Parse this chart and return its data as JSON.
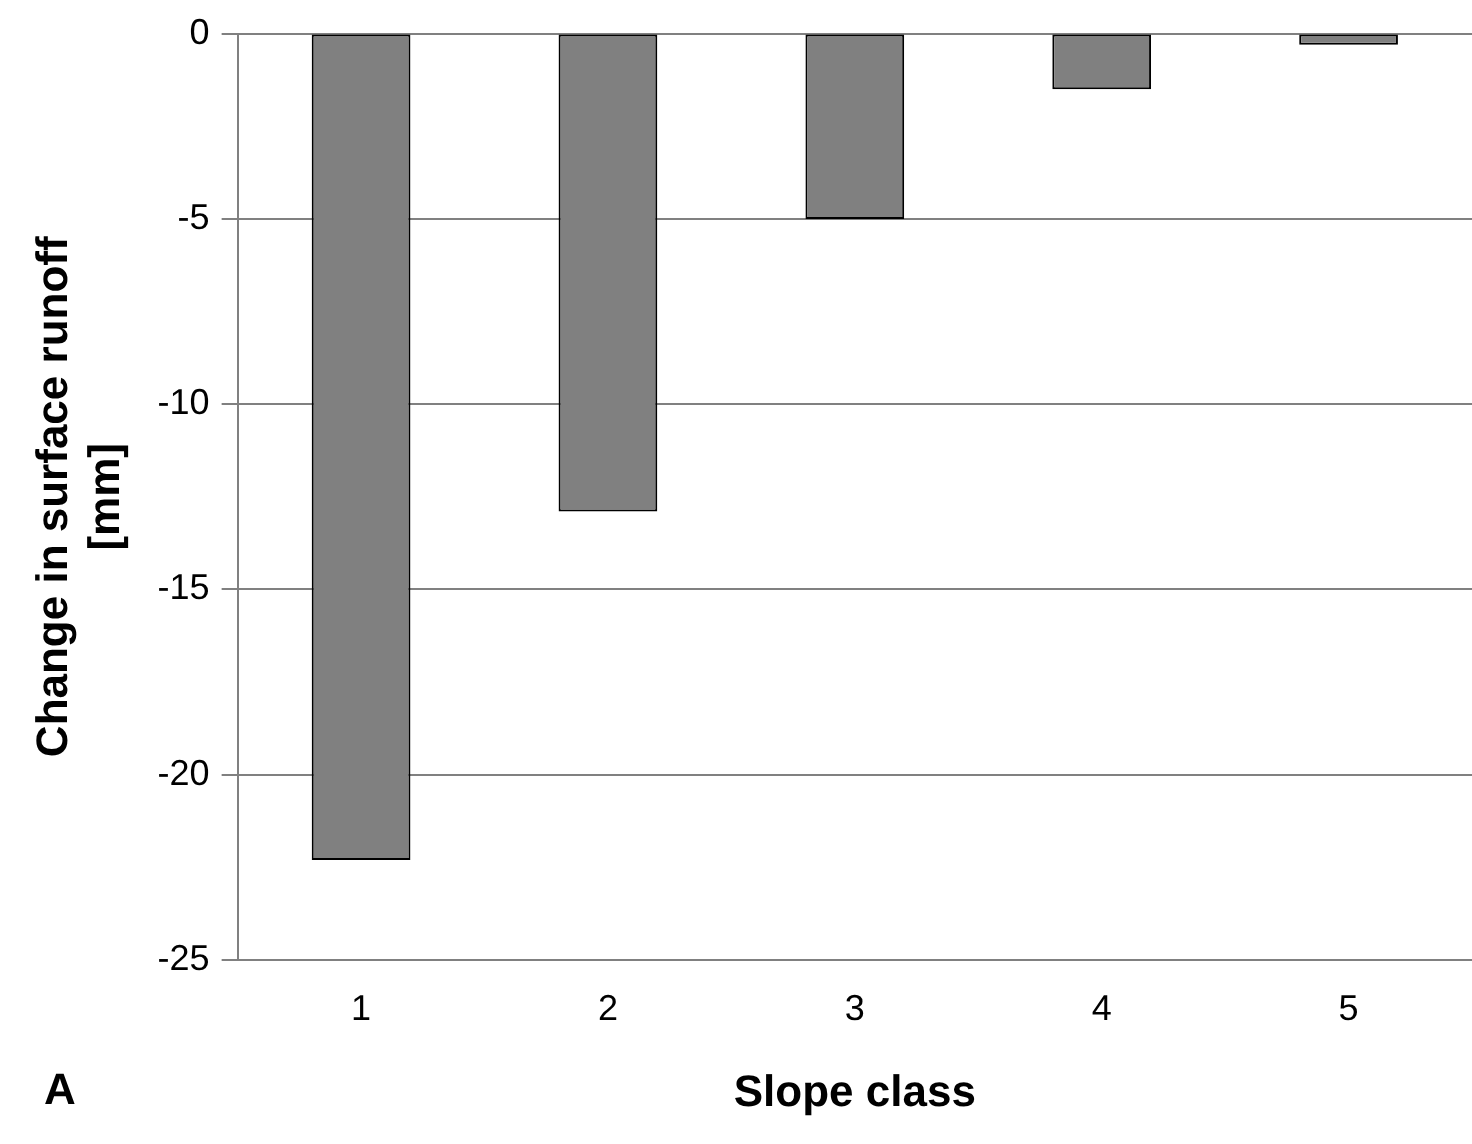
{
  "chart_data": {
    "type": "bar",
    "xlabel": "Slope class",
    "ylabel": "Change in surface runoff [mm]",
    "categories": [
      "1",
      "2",
      "3",
      "4",
      "5"
    ],
    "values": [
      -22.3,
      -12.9,
      -5.0,
      -1.5,
      -0.3
    ],
    "color": "#808080",
    "ylim": [
      -25,
      0
    ],
    "yticks": [
      -25,
      -20,
      -15,
      -10,
      -5,
      0
    ],
    "grid": "y",
    "legend": false,
    "annotations": [
      "A"
    ]
  }
}
